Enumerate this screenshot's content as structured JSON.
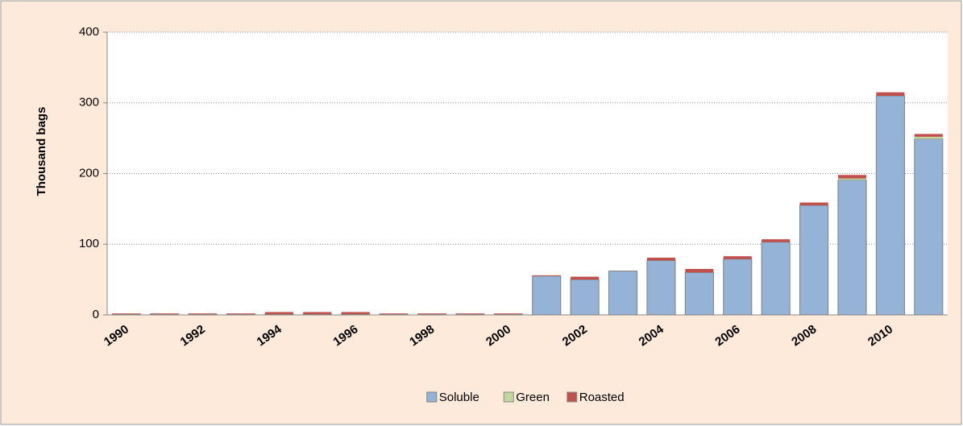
{
  "chart_data": {
    "type": "bar",
    "stacked": true,
    "y_label": "Thousand bags",
    "categories": [
      "1990",
      null,
      "1992",
      null,
      "1994",
      null,
      "1996",
      null,
      "1998",
      null,
      "2000",
      null,
      "2002",
      null,
      "2004",
      null,
      "2006",
      null,
      "2008",
      null,
      "2010",
      null
    ],
    "series": [
      {
        "name": "Soluble",
        "color": "#95b3d7",
        "values": [
          1,
          1,
          1,
          1,
          1,
          1,
          1,
          1,
          1,
          1,
          1,
          55,
          50,
          62,
          77,
          60,
          79,
          103,
          155,
          191,
          310,
          249
        ]
      },
      {
        "name": "Green",
        "color": "#c3d69b",
        "values": [
          0,
          0,
          0,
          0,
          0,
          0,
          0,
          0,
          0,
          0,
          0,
          0,
          0,
          0,
          0,
          0,
          0,
          0,
          0,
          2,
          0,
          3
        ]
      },
      {
        "name": "Roasted",
        "color": "#c0504d",
        "values": [
          1,
          1,
          1,
          1,
          3,
          3,
          3,
          1,
          1,
          1,
          1,
          1,
          4,
          0,
          4,
          5,
          4,
          4,
          4,
          5,
          5,
          4
        ]
      }
    ],
    "ylim": [
      0,
      400
    ],
    "yticks": [
      0,
      100,
      200,
      300,
      400
    ],
    "grid": true,
    "legend": "bottom"
  }
}
